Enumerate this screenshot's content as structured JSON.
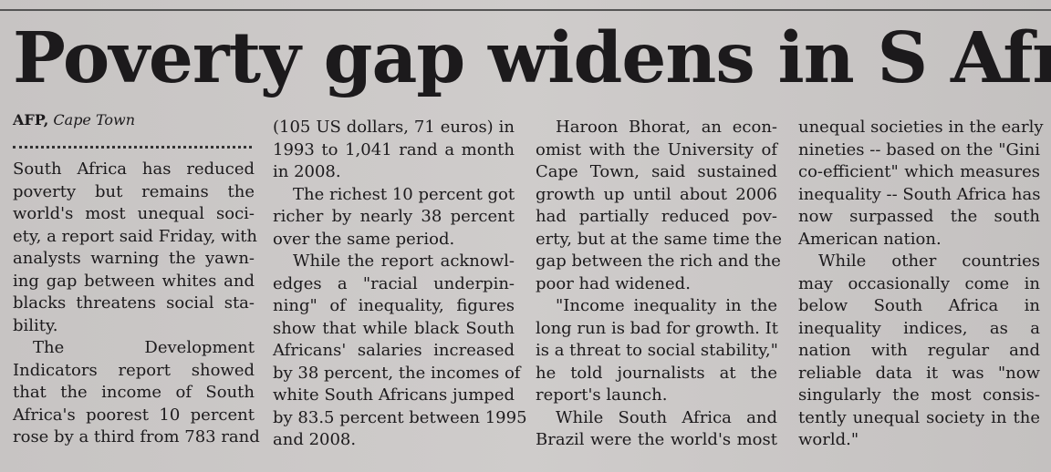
{
  "headline": "Poverty gap widens in S Africa",
  "byline": {
    "agency": "AFP,",
    "location": "Cape Town"
  },
  "columns": [
    {
      "lines": [
        "South Africa has reduced",
        "poverty but remains the",
        "world's most unequal soci-",
        "ety, a report said Friday, with",
        "analysts warning the yawn-",
        "ing gap between whites and",
        "blacks threatens social sta-",
        "bility.",
        "The Development",
        "Indicators report showed",
        "that the income of South",
        "Africa's poorest 10 percent",
        "rose by a third from 783 rand"
      ]
    },
    {
      "lines": [
        "(105 US dollars, 71 euros) in",
        "1993 to 1,041 rand a month",
        "in 2008.",
        "The richest 10 percent got",
        "richer by nearly 38 percent",
        "over the same period.",
        "While the report acknowl-",
        "edges a \"racial underpin-",
        "ning\" of inequality, figures",
        "show that while black South",
        "Africans' salaries increased",
        "by 38 percent, the incomes of",
        "white South Africans jumped",
        "by 83.5 percent between 1995",
        "and 2008."
      ]
    },
    {
      "lines": [
        "Haroon Bhorat, an econ-",
        "omist with the University of",
        "Cape Town, said sustained",
        "growth up until about 2006",
        "had partially reduced pov-",
        "erty, but at the same time the",
        "gap between the rich and the",
        "poor had widened.",
        "\"Income inequality in the",
        "long run is bad for growth. It",
        "is a threat to social stability,\"",
        "he told journalists at the",
        "report's launch.",
        "While South Africa and",
        "Brazil were the world's most"
      ]
    },
    {
      "lines": [
        "unequal societies in the early",
        "nineties -- based on the \"Gini",
        "co-efficient\" which measures",
        "inequality -- South Africa has",
        "now surpassed the south",
        "American nation.",
        "While other countries",
        "may occasionally come in",
        "below South Africa in",
        "inequality indices, as a",
        "nation with regular and",
        "reliable data it was \"now",
        "singularly the most consis-",
        "tently unequal society in the",
        "world.\""
      ]
    }
  ]
}
